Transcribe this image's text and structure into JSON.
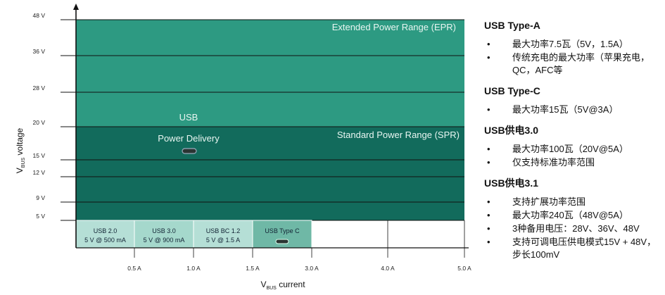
{
  "y_ticks": [
    {
      "label": "5 V",
      "value": 5
    },
    {
      "label": "9 V",
      "value": 9
    },
    {
      "label": "12 V",
      "value": 12
    },
    {
      "label": "15 V",
      "value": 15
    },
    {
      "label": "20 V",
      "value": 20
    },
    {
      "label": "28 V",
      "value": 28
    },
    {
      "label": "36 V",
      "value": 36
    },
    {
      "label": "48 V",
      "value": 48
    }
  ],
  "x_ticks": [
    {
      "label": "0.5 A",
      "value": 0.5
    },
    {
      "label": "1.0 A",
      "value": 1.0
    },
    {
      "label": "1.5 A",
      "value": 1.5
    },
    {
      "label": "3.0 A",
      "value": 3.0
    },
    {
      "label": "4.0 A",
      "value": 4.0
    },
    {
      "label": "5.0 A",
      "value": 5.0
    }
  ],
  "regions": {
    "epr": {
      "label": "Extended Power Range (EPR)",
      "max_voltage": 48,
      "color": "#2d9a82"
    },
    "spr": {
      "label": "Standard Power Range (SPR)",
      "max_voltage": 20,
      "color": "#126b5c"
    }
  },
  "usb_pd": {
    "line1": "USB",
    "line2": "Power Delivery"
  },
  "spec_boxes": [
    {
      "line1": "USB 2.0",
      "line2": "5 V @ 500 mA",
      "max_current": 0.5,
      "color": "#b5dfd6"
    },
    {
      "line1": "USB 3.0",
      "line2": "5 V @ 900 mA",
      "max_current": 1.0,
      "color": "#a5d8cc"
    },
    {
      "line1": "USB BC 1.2",
      "line2": "5 V @ 1.5 A",
      "max_current": 1.5,
      "color": "#b5dfd6"
    },
    {
      "line1": "USB Type C",
      "line2": "",
      "max_current": 3.0,
      "color": "#6fb8a6"
    }
  ],
  "axes": {
    "y_title_main": "V",
    "y_title_sub": "BUS",
    "y_title_rest": " voltage",
    "x_title_main": "V",
    "x_title_sub": "BUS",
    "x_title_rest": " current"
  },
  "right_panel": {
    "sections": [
      {
        "title": "USB Type-A",
        "items": [
          "最大功率7.5瓦（5V，1.5A）",
          "传统充电的最大功率（苹果充电，QC，AFC等"
        ]
      },
      {
        "title": "USB Type-C",
        "items": [
          "最大功率15瓦（5V@3A）"
        ]
      },
      {
        "title": "USB供电3.0",
        "items": [
          "最大功率100瓦（20V@5A）",
          "仅支持标准功率范围"
        ]
      },
      {
        "title": "USB供电3.1",
        "items": [
          "支持扩展功率范围",
          "最大功率240瓦（48V@5A）",
          "3种备用电压：28V、36V、48V",
          "支持可调电压供电模式15V + 48V，步长100mV"
        ]
      }
    ]
  }
}
